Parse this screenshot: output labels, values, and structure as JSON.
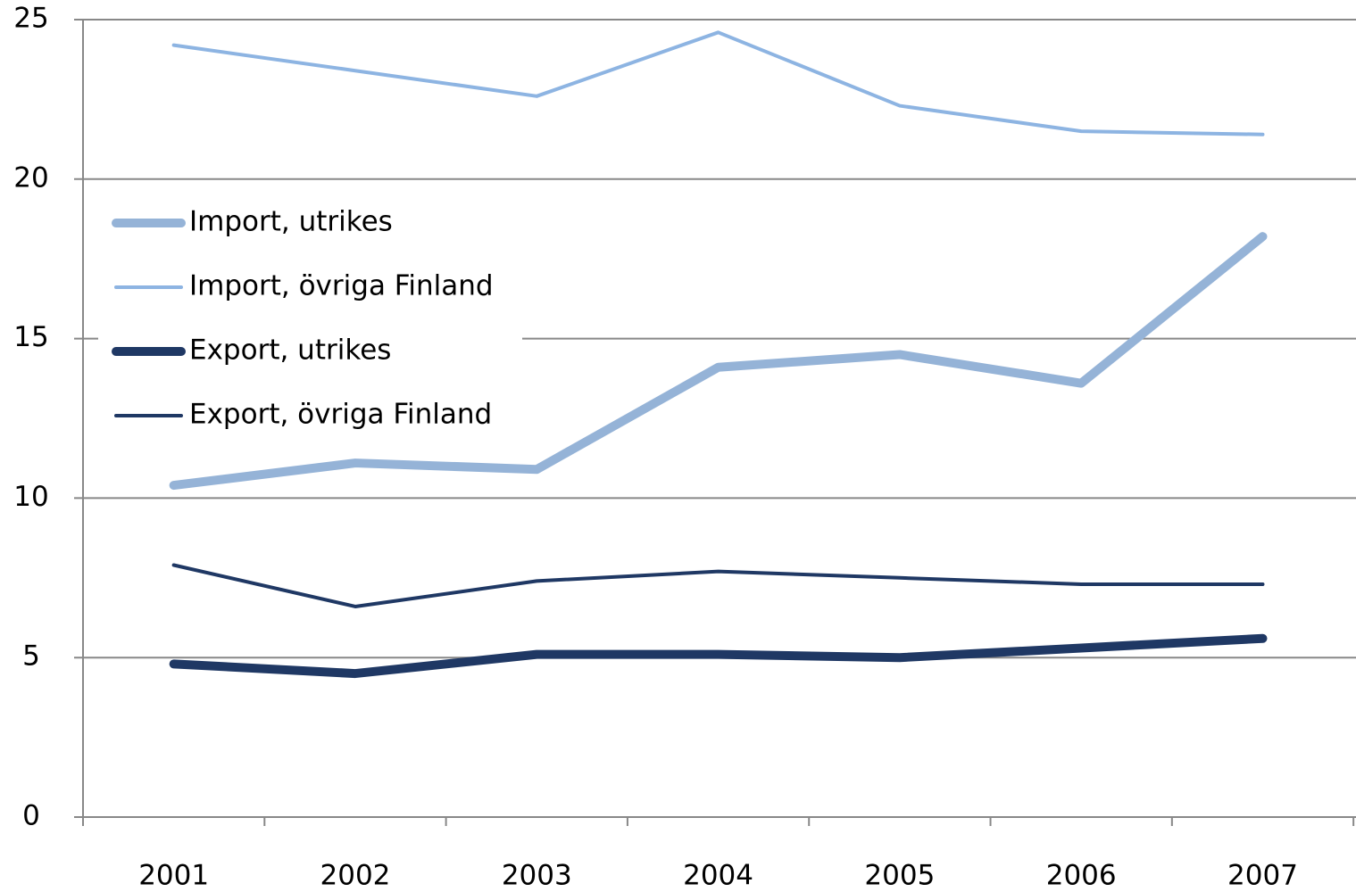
{
  "chart_data": {
    "type": "line",
    "categories": [
      "2001",
      "2002",
      "2003",
      "2004",
      "2005",
      "2006",
      "2007"
    ],
    "series": [
      {
        "name": "Import, utrikes",
        "color": "#95b3d7",
        "width": 10,
        "values": [
          10.4,
          11.1,
          10.9,
          14.1,
          14.5,
          13.6,
          18.2
        ]
      },
      {
        "name": "Import, övriga Finland",
        "color": "#8db4e2",
        "width": 4,
        "values": [
          24.2,
          23.4,
          22.6,
          24.6,
          22.3,
          21.5,
          21.4
        ]
      },
      {
        "name": "Export, utrikes",
        "color": "#1f3864",
        "width": 10,
        "values": [
          4.8,
          4.5,
          5.1,
          5.1,
          5.0,
          5.3,
          5.6
        ]
      },
      {
        "name": "Export, övriga Finland",
        "color": "#1f3864",
        "width": 4,
        "values": [
          7.9,
          6.6,
          7.4,
          7.7,
          7.5,
          7.3,
          7.3
        ]
      }
    ],
    "ylim": [
      0,
      25
    ],
    "yticks": [
      0,
      5,
      10,
      15,
      20,
      25
    ],
    "grid": true,
    "legend": "upper left"
  }
}
